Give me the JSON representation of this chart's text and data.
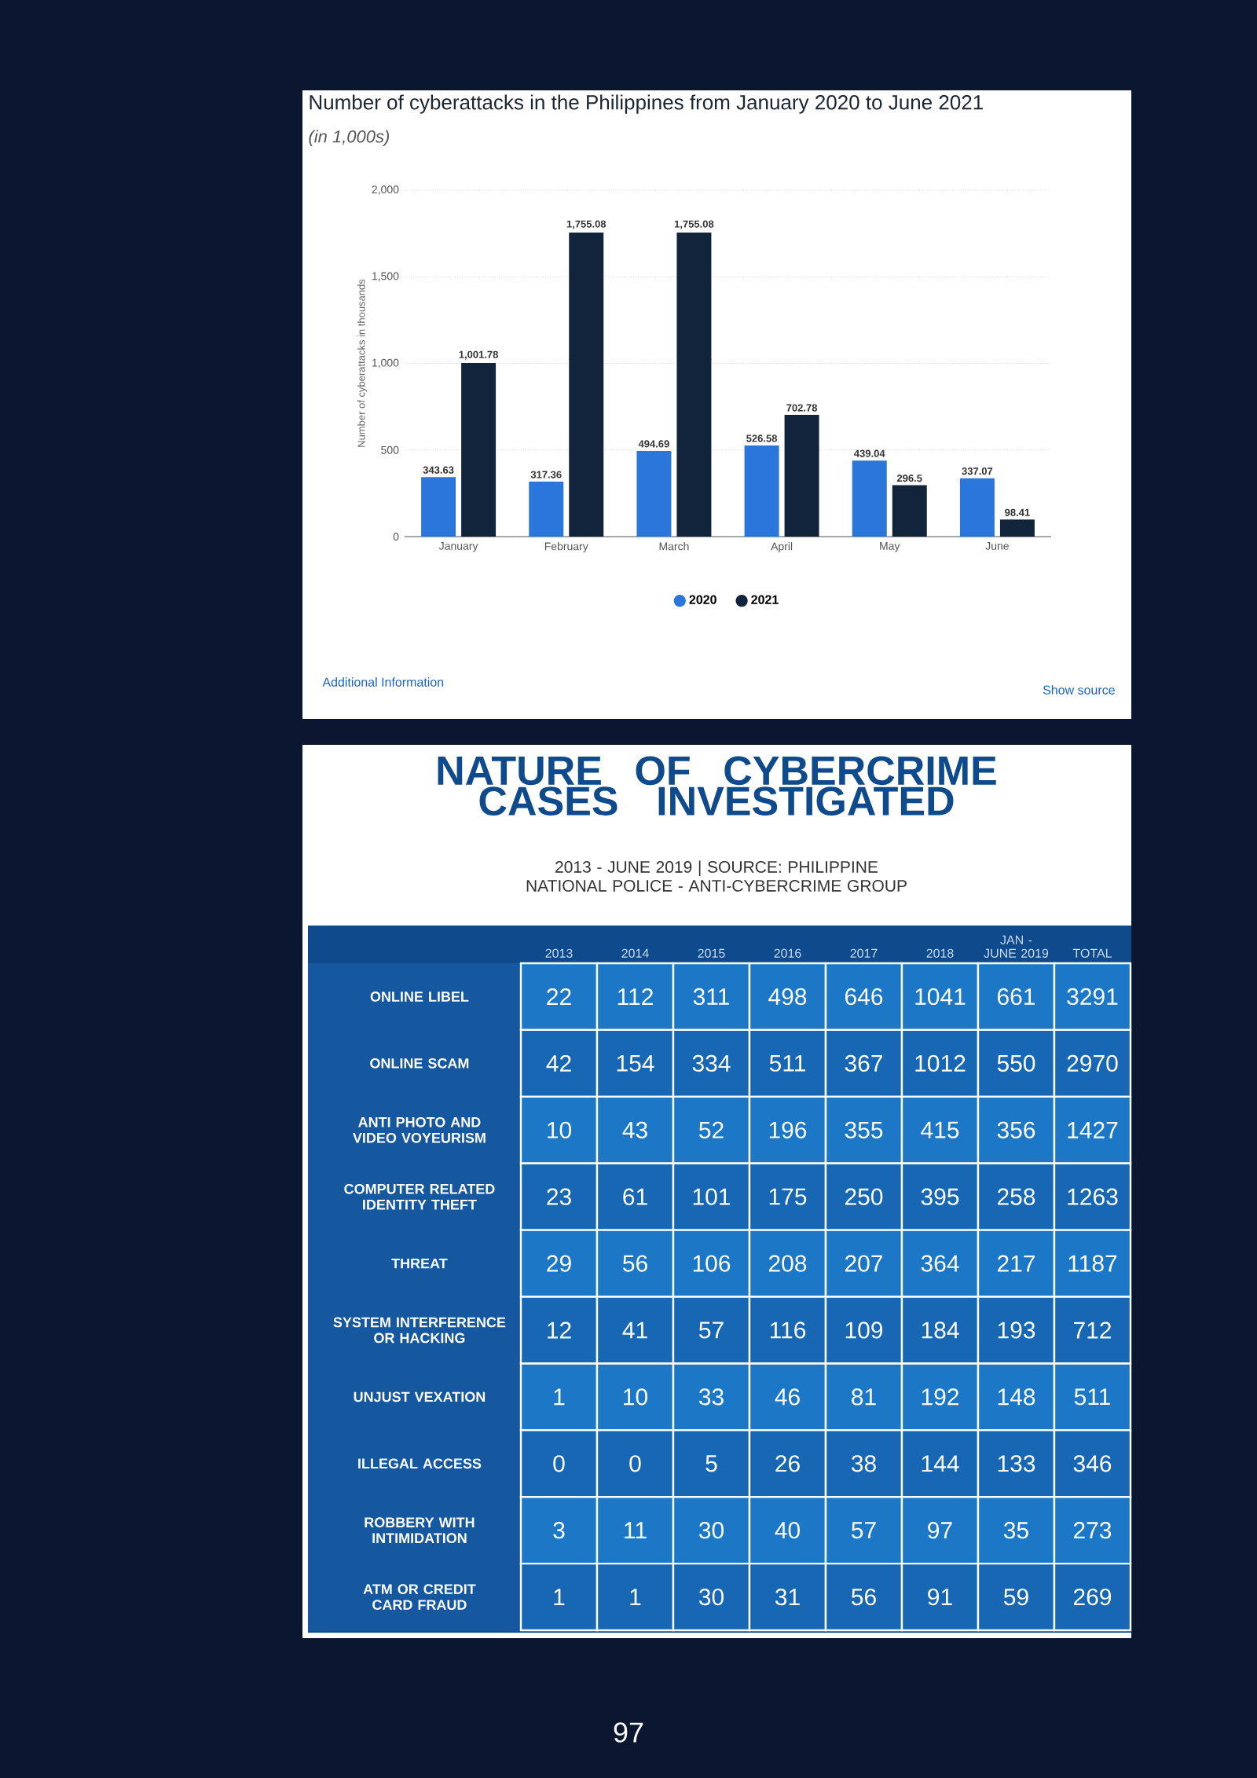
{
  "chart_data": [
    {
      "type": "bar",
      "title": "Number of cyberattacks in the Philippines from January 2020 to June 2021",
      "subtitle": "(in 1,000s)",
      "ylabel": "Number of cyberattacks in thousands",
      "categories": [
        "January",
        "February",
        "March",
        "April",
        "May",
        "June"
      ],
      "series": [
        {
          "name": "2020",
          "color": "#2b76db",
          "values": [
            343.63,
            317.36,
            494.69,
            526.58,
            439.04,
            337.07
          ],
          "value_labels": [
            "343.63",
            "317.36",
            "494.69",
            "526.58",
            "439.04",
            "337.07"
          ]
        },
        {
          "name": "2021",
          "color": "#12243c",
          "values": [
            1001.78,
            1755.08,
            1755.08,
            702.78,
            296.5,
            98.41
          ],
          "value_labels": [
            "1,001.78",
            "1,755.08",
            "1,755.08",
            "702.78",
            "296.5",
            "98.41"
          ]
        }
      ],
      "ylim": [
        0,
        2000
      ],
      "yticks": [
        0,
        500,
        {
          "value": 1000,
          "label": "1,000"
        },
        {
          "value": 1500,
          "label": "1,500"
        },
        {
          "value": 2000,
          "label": "2,000"
        }
      ],
      "grid": "y",
      "legend": "bottom",
      "annotations": [
        "Additional Information",
        "Show source"
      ]
    },
    {
      "type": "heatmap",
      "title": "NATURE OF CYBERCRIME CASES INVESTIGATED",
      "subtitle": "2013 - JUNE 2019 | SOURCE: PHILIPPINE NATIONAL POLICE - ANTI-CYBERCRIME GROUP",
      "categories": [
        "2013",
        "2014",
        "2015",
        "2016",
        "2017",
        "2018",
        "JAN - JUNE 2019",
        "TOTAL"
      ],
      "y_categories": [
        "ONLINE LIBEL",
        "ONLINE SCAM",
        "ANTI PHOTO AND VIDEO VOYEURISM",
        "COMPUTER RELATED IDENTITY THEFT",
        "THREAT",
        "SYSTEM INTERFERENCE OR HACKING",
        "UNJUST VEXATION",
        "ILLEGAL ACCESS",
        "ROBBERY WITH INTIMIDATION",
        "ATM OR CREDIT CARD FRAUD"
      ],
      "cells": [
        [
          22,
          112,
          311,
          498,
          646,
          1041,
          661,
          3291
        ],
        [
          42,
          154,
          334,
          511,
          367,
          1012,
          550,
          2970
        ],
        [
          10,
          43,
          52,
          196,
          355,
          415,
          356,
          1427
        ],
        [
          23,
          61,
          101,
          175,
          250,
          395,
          258,
          1263
        ],
        [
          29,
          56,
          106,
          208,
          207,
          364,
          217,
          1187
        ],
        [
          12,
          41,
          57,
          116,
          109,
          184,
          193,
          712
        ],
        [
          1,
          10,
          33,
          46,
          81,
          192,
          148,
          511
        ],
        [
          0,
          0,
          5,
          26,
          38,
          144,
          133,
          346
        ],
        [
          3,
          11,
          30,
          40,
          57,
          97,
          35,
          273
        ],
        [
          1,
          1,
          30,
          31,
          56,
          91,
          59,
          269
        ]
      ],
      "data_labels": true,
      "annotations": [
        "97"
      ]
    }
  ]
}
